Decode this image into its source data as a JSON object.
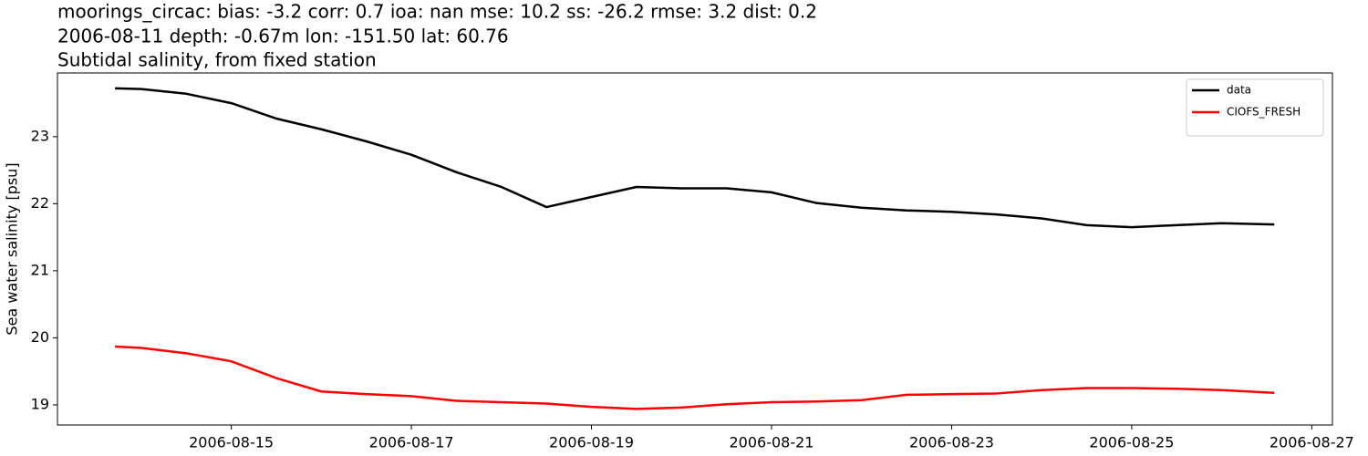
{
  "chart_data": {
    "type": "line",
    "title": "moorings_circac: bias: -3.2  corr: 0.7  ioa: nan  mse: 10.2  ss: -26.2  rmse: 3.2  dist: 0.2",
    "subtitle": "2006-08-11 depth: -0.67m lon: -151.50 lat: 60.76",
    "subtitle2": "Subtidal salinity, from fixed station",
    "ylabel": "Sea water salinity [psu]",
    "x": [
      "2006-08-13T17:00",
      "2006-08-14T00:00",
      "2006-08-14T12:00",
      "2006-08-15T00:00",
      "2006-08-15T12:00",
      "2006-08-16T00:00",
      "2006-08-16T12:00",
      "2006-08-17T00:00",
      "2006-08-17T12:00",
      "2006-08-18T00:00",
      "2006-08-18T12:00",
      "2006-08-19T00:00",
      "2006-08-19T12:00",
      "2006-08-20T00:00",
      "2006-08-20T12:00",
      "2006-08-21T00:00",
      "2006-08-21T12:00",
      "2006-08-22T00:00",
      "2006-08-22T12:00",
      "2006-08-23T00:00",
      "2006-08-23T12:00",
      "2006-08-24T00:00",
      "2006-08-24T12:00",
      "2006-08-25T00:00",
      "2006-08-25T12:00",
      "2006-08-26T00:00",
      "2006-08-26T14:00"
    ],
    "series": [
      {
        "name": "data",
        "color": "#000000",
        "values": [
          23.72,
          23.71,
          23.64,
          23.5,
          23.27,
          23.11,
          22.93,
          22.73,
          22.47,
          22.25,
          21.95,
          22.1,
          22.25,
          22.23,
          22.23,
          22.17,
          22.01,
          21.94,
          21.9,
          21.88,
          21.84,
          21.78,
          21.68,
          21.65,
          21.68,
          21.71,
          21.69
        ]
      },
      {
        "name": "CIOFS_FRESH",
        "color": "#ff0000",
        "values": [
          19.87,
          19.85,
          19.77,
          19.65,
          19.4,
          19.2,
          19.16,
          19.13,
          19.06,
          19.04,
          19.02,
          18.97,
          18.94,
          18.96,
          19.01,
          19.04,
          19.05,
          19.07,
          19.15,
          19.16,
          19.17,
          19.22,
          19.25,
          19.25,
          19.24,
          19.22,
          19.18
        ]
      }
    ],
    "xlim": [
      "2006-08-13T01:40",
      "2006-08-27T05:30"
    ],
    "xticks": [
      "2006-08-15",
      "2006-08-17",
      "2006-08-19",
      "2006-08-21",
      "2006-08-23",
      "2006-08-25",
      "2006-08-27"
    ],
    "ylim": [
      18.7,
      23.95
    ],
    "yticks": [
      19,
      20,
      21,
      22,
      23
    ],
    "legend": "upper right",
    "grid": false
  }
}
